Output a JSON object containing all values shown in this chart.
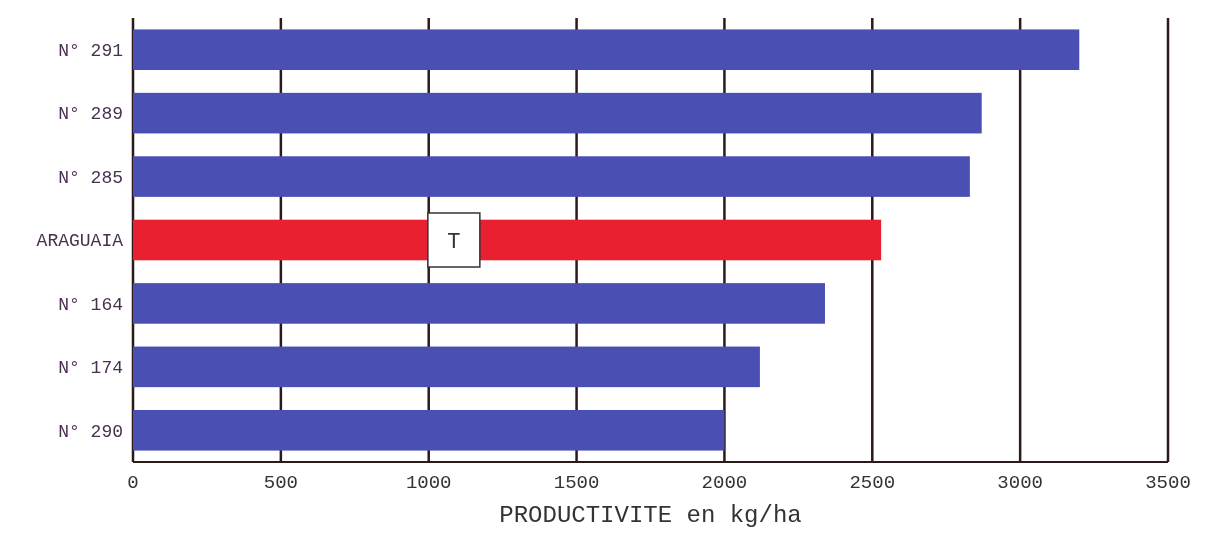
{
  "chart_data": {
    "type": "bar",
    "orientation": "horizontal",
    "xlabel": "PRODUCTIVITE en kg/ha",
    "categories": [
      "N° 291",
      "N° 289",
      "N° 285",
      "ARAGUAIA",
      "N° 164",
      "N° 174",
      "N° 290"
    ],
    "values": [
      3200,
      2870,
      2830,
      2530,
      2340,
      2120,
      2000
    ],
    "colors": [
      "#4a4fb4",
      "#4a4fb4",
      "#4a4fb4",
      "#e82030",
      "#4a4fb4",
      "#4a4fb4",
      "#4a4fb4"
    ],
    "xlim": [
      0,
      3500
    ],
    "xticks": [
      0,
      500,
      1000,
      1500,
      2000,
      2500,
      3000,
      3500
    ],
    "grid": "x",
    "annotations": [
      "T"
    ]
  }
}
